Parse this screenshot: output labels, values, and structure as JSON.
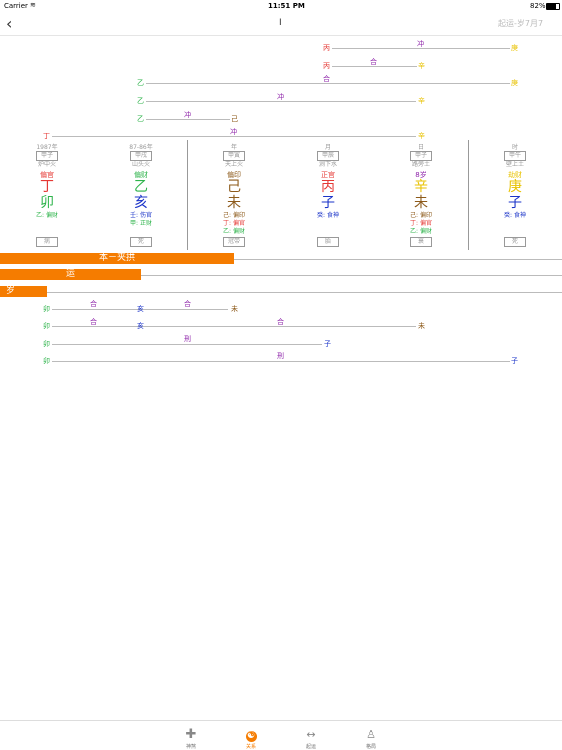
{
  "status": {
    "carrier": "Carrier",
    "time": "11:51 PM",
    "battery": "82%"
  },
  "nav": {
    "title": "I",
    "right": "起运-岁7月7"
  },
  "top_relations": [
    {
      "left": "丙",
      "mid": "冲",
      "right": "庚"
    },
    {
      "left": "丙",
      "mid": "合",
      "right": "辛"
    },
    {
      "left": "乙",
      "mid": "合",
      "right": "庚"
    },
    {
      "left": "乙",
      "mid": "冲",
      "right": "辛"
    },
    {
      "left": "乙",
      "mid": "冲",
      "right": "己"
    },
    {
      "left": "丁",
      "mid": "冲",
      "right": "辛"
    }
  ],
  "pillars": [
    {
      "top": "1987年",
      "box": "甲子",
      "nayin": "炉中火",
      "god": "偏官",
      "stem": "丁",
      "branch": "卯",
      "hidden": [
        "乙: 偏财"
      ],
      "phase": "病"
    },
    {
      "top": "87-86年",
      "box": "甲戌",
      "nayin": "山头火",
      "god": "偏财",
      "stem": "乙",
      "branch": "亥",
      "hidden": [
        "壬: 伤官",
        "甲: 正财"
      ],
      "phase": "死"
    },
    {
      "top": "年",
      "box": "甲寅",
      "nayin": "天上火",
      "god": "偏印",
      "stem": "己",
      "branch": "未",
      "hidden": [
        "己: 偏印",
        "丁: 偏官",
        "乙: 偏财"
      ],
      "phase": "冠带"
    },
    {
      "top": "月",
      "box": "甲辰",
      "nayin": "涧下水",
      "god": "正官",
      "stem": "丙",
      "branch": "子",
      "hidden": [
        "癸: 食神"
      ],
      "phase": "胎"
    },
    {
      "top": "日",
      "box": "甲子",
      "nayin": "路旁土",
      "god": "8岁",
      "stem": "辛",
      "branch": "未",
      "hidden": [
        "己: 偏印",
        "丁: 偏官",
        "乙: 偏财"
      ],
      "phase": "衰"
    },
    {
      "top": "时",
      "box": "甲午",
      "nayin": "壁上土",
      "god": "劫财",
      "stem": "庚",
      "branch": "子",
      "hidden": [
        "癸: 食神"
      ],
      "phase": "死"
    }
  ],
  "bars": {
    "ben": "本－夹拱",
    "yun": "运",
    "sui": "岁"
  },
  "bottom_relations": [
    {
      "left": "卯",
      "m1": "合",
      "a": "亥",
      "m2": "合",
      "right": "未"
    },
    {
      "left": "卯",
      "m1": "合",
      "a": "亥",
      "m2": "合",
      "right": "未"
    },
    {
      "left": "卯",
      "m1": "刑",
      "right": "子"
    },
    {
      "left": "卯",
      "m1": "刑",
      "right": "子"
    }
  ],
  "tabs": [
    {
      "label": "神煞",
      "icon": "plus-icon"
    },
    {
      "label": "关系",
      "icon": "yinyang-icon"
    },
    {
      "label": "起运",
      "icon": "arrows-icon"
    },
    {
      "label": "格局",
      "icon": "person-icon"
    }
  ],
  "colors": {
    "orange": "#f57c00",
    "fire": "#e53935",
    "wood": "#2db34a",
    "earth": "#8d5a1a",
    "water": "#1a33c8",
    "metal": "#e8c200",
    "purple": "#8e24aa"
  }
}
